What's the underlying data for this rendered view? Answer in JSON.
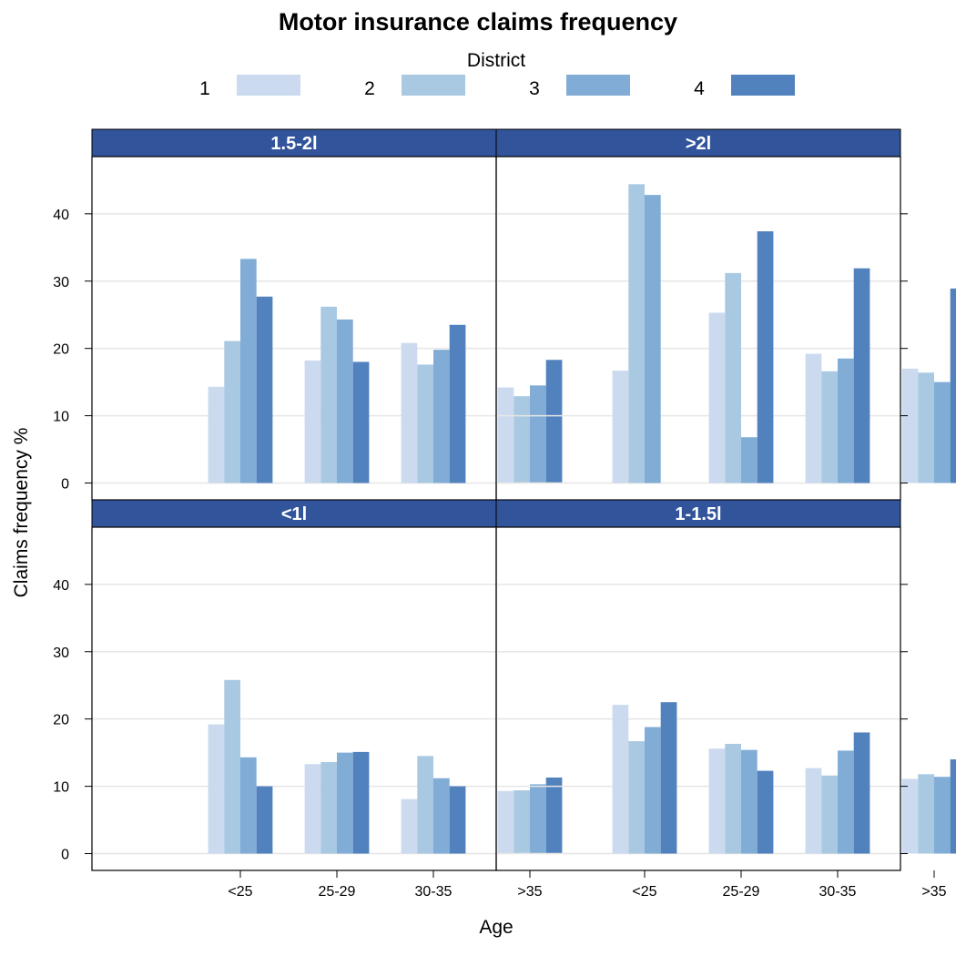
{
  "chart_data": {
    "type": "bar",
    "title": "Motor insurance claims frequency",
    "xlabel": "Age",
    "ylabel": "Claims frequency %",
    "legend": {
      "title": "District",
      "placement": "top",
      "entries": [
        "1",
        "2",
        "3",
        "4"
      ]
    },
    "categories": [
      "<25",
      "25-29",
      "30-35",
      ">35"
    ],
    "colors": [
      "#cbdaef",
      "#a9c9e2",
      "#80acd6",
      "#5282be"
    ],
    "strip_color": "#31549a",
    "ylim": [
      -2.5,
      48.5
    ],
    "yticks": [
      0,
      10,
      20,
      30,
      40
    ],
    "grid": "horizontal",
    "panels": [
      {
        "label": "1.5-2l",
        "series": [
          {
            "name": "1",
            "values": [
              14.3,
              18.2,
              20.8,
              14.2
            ]
          },
          {
            "name": "2",
            "values": [
              21.1,
              26.2,
              17.6,
              12.9
            ]
          },
          {
            "name": "3",
            "values": [
              33.3,
              24.3,
              19.8,
              14.5
            ]
          },
          {
            "name": "4",
            "values": [
              27.7,
              18.0,
              23.5,
              18.3
            ]
          }
        ]
      },
      {
        "label": ">2l",
        "series": [
          {
            "name": "1",
            "values": [
              16.7,
              25.3,
              19.2,
              17.0
            ]
          },
          {
            "name": "2",
            "values": [
              44.4,
              31.2,
              16.6,
              16.4
            ]
          },
          {
            "name": "3",
            "values": [
              42.8,
              6.8,
              18.5,
              15.0
            ]
          },
          {
            "name": "4",
            "values": [
              0,
              37.4,
              31.9,
              28.9
            ]
          }
        ]
      },
      {
        "label": "<1l",
        "series": [
          {
            "name": "1",
            "values": [
              19.2,
              13.3,
              8.1,
              9.3
            ]
          },
          {
            "name": "2",
            "values": [
              25.8,
              13.6,
              14.5,
              9.4
            ]
          },
          {
            "name": "3",
            "values": [
              14.3,
              15.0,
              11.2,
              10.3
            ]
          },
          {
            "name": "4",
            "values": [
              10.0,
              15.1,
              10.0,
              11.3
            ]
          }
        ]
      },
      {
        "label": "1-1.5l",
        "series": [
          {
            "name": "1",
            "values": [
              22.1,
              15.6,
              12.7,
              11.1
            ]
          },
          {
            "name": "2",
            "values": [
              16.7,
              16.3,
              11.6,
              11.8
            ]
          },
          {
            "name": "3",
            "values": [
              18.8,
              15.4,
              15.3,
              11.4
            ]
          },
          {
            "name": "4",
            "values": [
              22.5,
              12.3,
              18.0,
              14.0
            ]
          }
        ]
      }
    ]
  }
}
